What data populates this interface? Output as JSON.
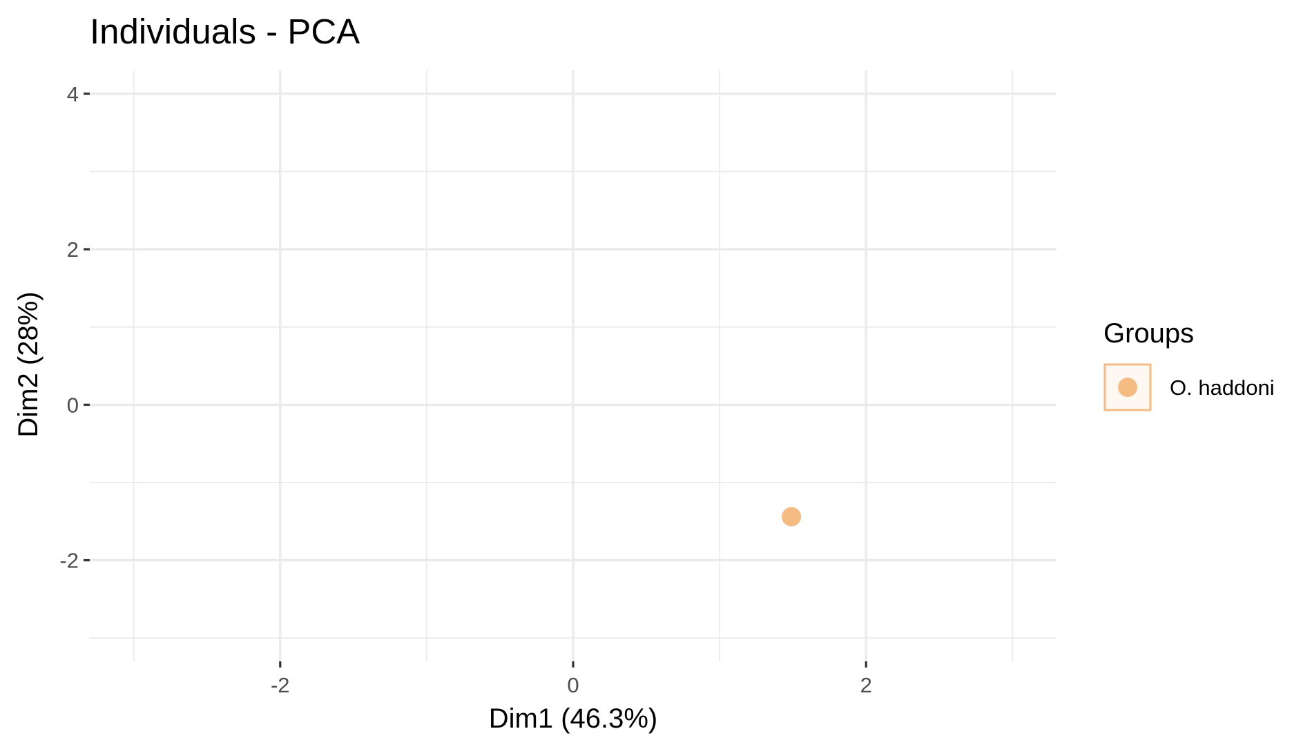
{
  "chart_data": {
    "type": "scatter",
    "title": "Individuals - PCA",
    "xlabel": "Dim1 (46.3%)",
    "ylabel": "Dim2 (28%)",
    "xlim": [
      -3.3,
      3.3
    ],
    "ylim": [
      -3.3,
      4.3
    ],
    "x_ticks": [
      -2,
      0,
      2
    ],
    "x_tick_labels": [
      "-2",
      "0",
      "2"
    ],
    "x_minor": [
      -3,
      -1,
      1,
      3
    ],
    "y_ticks": [
      -2,
      0,
      2,
      4
    ],
    "y_tick_labels": [
      "-2",
      "0",
      "2",
      "4"
    ],
    "y_minor": [
      -3,
      -1,
      1,
      3
    ],
    "grid": true,
    "legend": {
      "title": "Groups",
      "position": "right",
      "entries": [
        "O. haddoni"
      ]
    },
    "series": [
      {
        "name": "O. haddoni",
        "color": "#f5bb82",
        "points": [
          {
            "x": 1.49,
            "y": -1.44
          }
        ]
      }
    ]
  }
}
